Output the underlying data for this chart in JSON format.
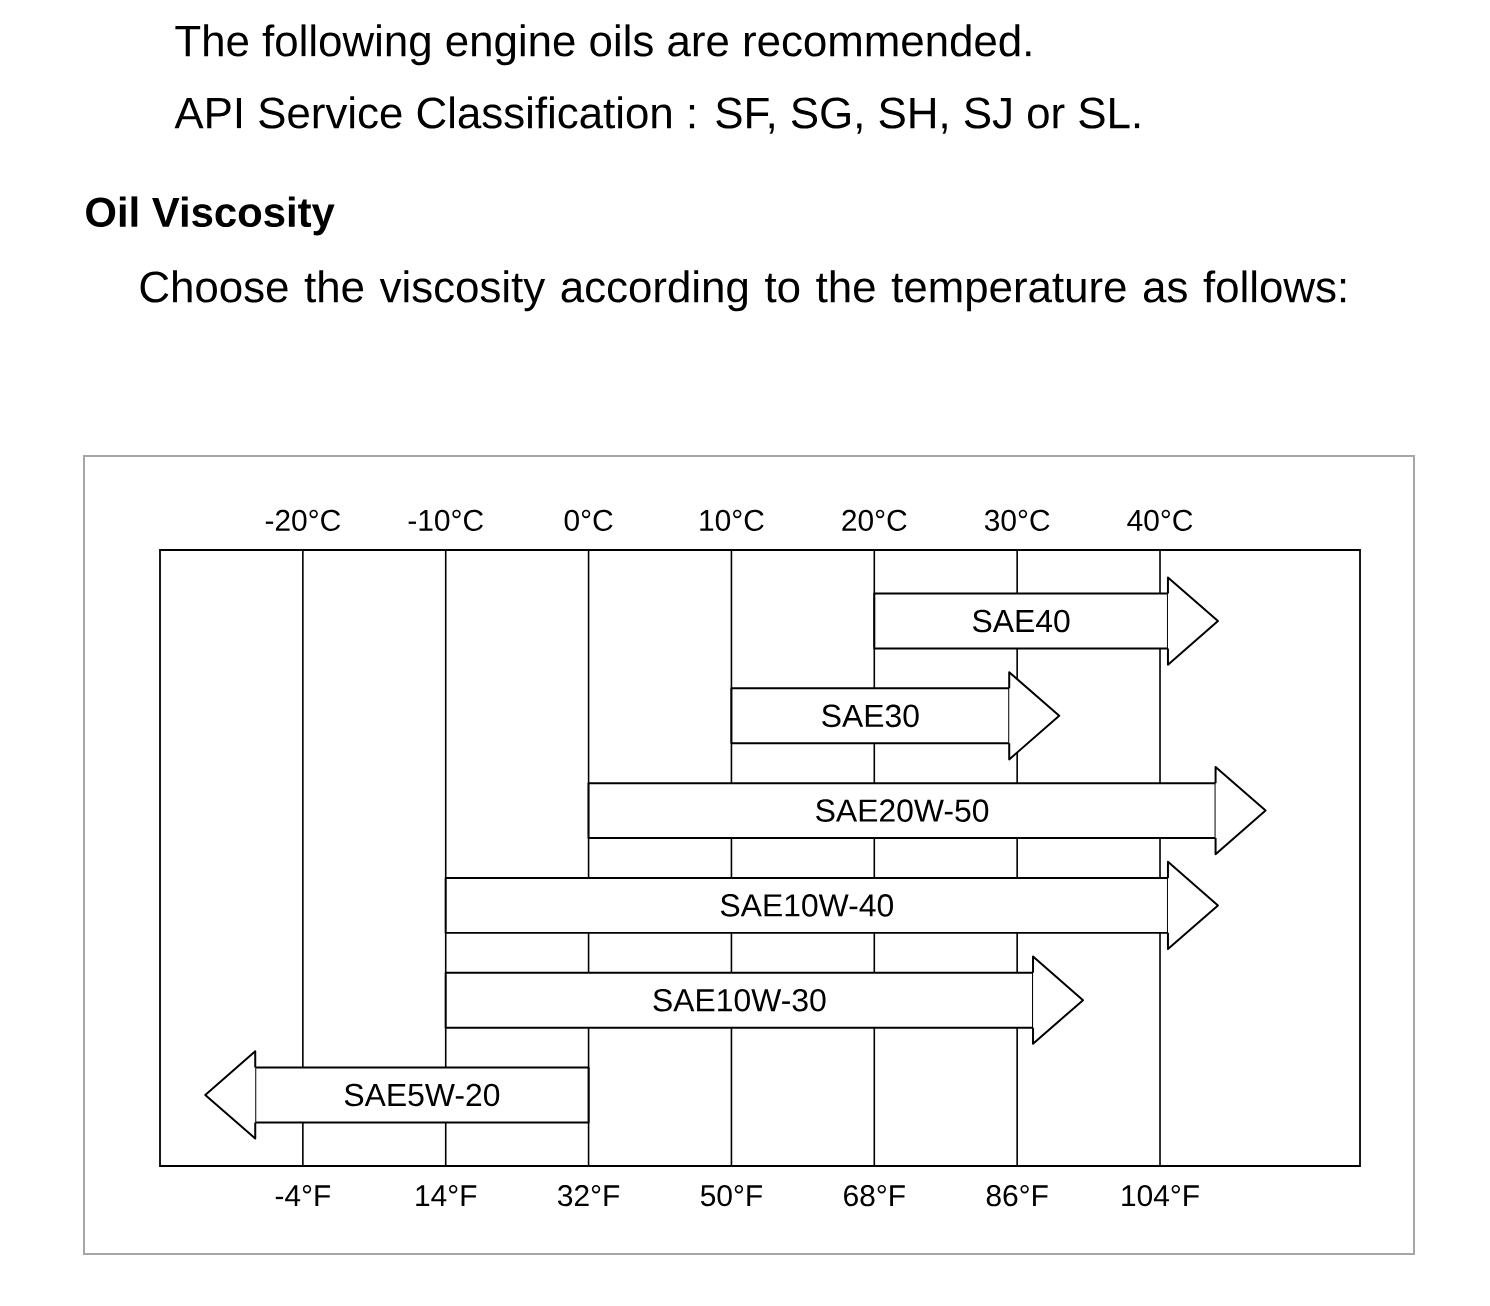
{
  "chart_data": {
    "type": "bar",
    "orientation": "horizontal",
    "annotations": [
      "The following engine oils are recommended.",
      "API Service Classification : SF, SG, SH, SJ or SL."
    ],
    "title": "Oil Viscosity",
    "subtitle": "Choose the viscosity according to the temperature as follows:",
    "categories": [
      "SAE40",
      "SAE30",
      "SAE20W-50",
      "SAE10W-40",
      "SAE10W-30",
      "SAE5W-20"
    ],
    "base": [
      68,
      50,
      32,
      14,
      14,
      32
    ],
    "values": [
      37,
      35,
      79,
      91,
      74,
      -42
    ],
    "color": "#ffffff",
    "xlim": [
      -22,
      129.2
    ],
    "xticks": [
      {
        "value": -4,
        "label": "-4°F"
      },
      {
        "value": 14,
        "label": "14°F"
      },
      {
        "value": 32,
        "label": "32°F"
      },
      {
        "value": 50,
        "label": "50°F"
      },
      {
        "value": 68,
        "label": "68°F"
      },
      {
        "value": 86,
        "label": "86°F"
      },
      {
        "value": 104,
        "label": "104°F"
      }
    ],
    "x2lim": [
      -30,
      54
    ],
    "x2ticks": [
      {
        "value": -20,
        "label": "-20°C"
      },
      {
        "value": -10,
        "label": "-10°C"
      },
      {
        "value": 0,
        "label": "0°C"
      },
      {
        "value": 10,
        "label": "10°C"
      },
      {
        "value": 20,
        "label": "20°C"
      },
      {
        "value": 30,
        "label": "30°C"
      },
      {
        "value": 40,
        "label": "40°C"
      }
    ],
    "grid": "x"
  }
}
